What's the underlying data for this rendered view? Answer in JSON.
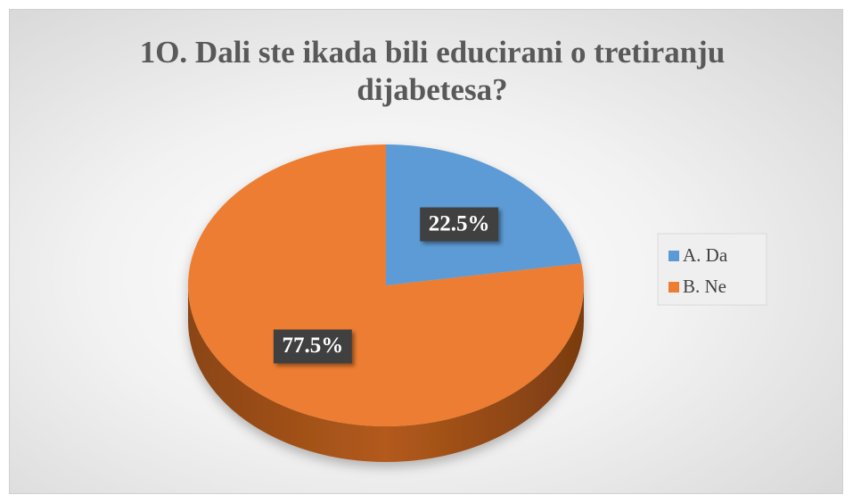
{
  "chart_data": {
    "type": "pie",
    "title": "1O. Dali ste ikada bili educirani o tretiranju dijabetesa?",
    "categories": [
      "A. Da",
      "B. Ne"
    ],
    "values": [
      22.5,
      77.5
    ],
    "value_labels": [
      "22.5%",
      "77.5%"
    ],
    "colors": [
      "#5b9bd5",
      "#ed7d31"
    ],
    "legend": "right"
  }
}
